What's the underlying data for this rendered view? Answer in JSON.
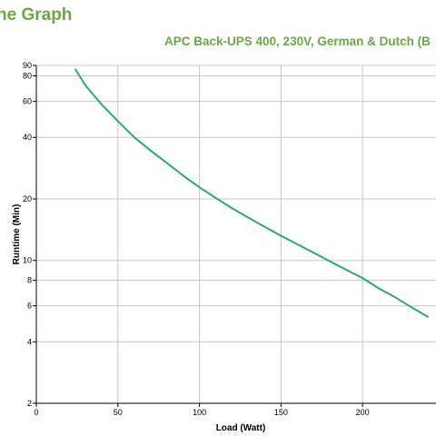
{
  "header": {
    "title": "ne Graph",
    "subtitle": "APC Back-UPS 400, 230V, German & Dutch (B"
  },
  "colors": {
    "title": "#6aa842",
    "curve": "#2eaa6a",
    "grid": "#c8c8c8"
  },
  "chart_data": {
    "type": "line",
    "title": "ne Graph",
    "subtitle": "APC Back-UPS 400, 230V, German & Dutch (B",
    "xlabel": "Load (Watt)",
    "ylabel": "Runtime (Min)",
    "xlim": [
      0,
      245
    ],
    "ylim": [
      2,
      90
    ],
    "yscale": "log",
    "grid": true,
    "x_ticks": [
      0,
      50,
      100,
      150,
      200
    ],
    "y_ticks": [
      2,
      4,
      6,
      8,
      10,
      20,
      40,
      60,
      80,
      90
    ],
    "series": [
      {
        "x": [
          24,
          30,
          40,
          50,
          60,
          70,
          80,
          90,
          100,
          110,
          120,
          130,
          140,
          150,
          160,
          170,
          180,
          190,
          200,
          210,
          220,
          230,
          240
        ],
        "y": [
          86,
          72,
          58,
          48,
          40,
          34.5,
          30,
          26,
          22.8,
          20.2,
          18,
          16.2,
          14.6,
          13.2,
          12,
          10.9,
          9.9,
          9,
          8.2,
          7.3,
          6.6,
          5.9,
          5.3
        ]
      }
    ]
  }
}
